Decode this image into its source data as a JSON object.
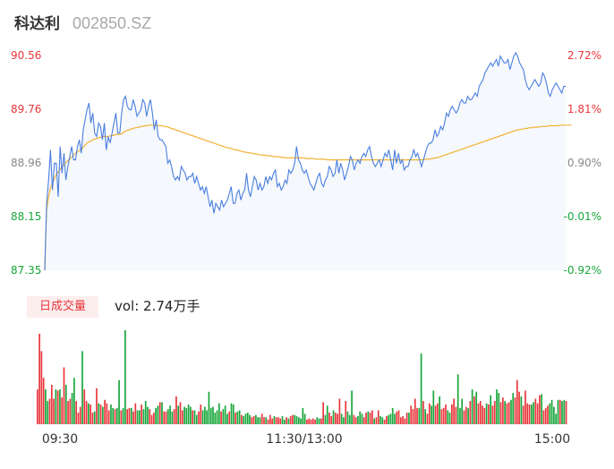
{
  "header": {
    "name": "科达利",
    "code": "002850.SZ"
  },
  "volume_section": {
    "tag": "日成交量",
    "text": "vol: 2.74万手"
  },
  "colors": {
    "up": "#e8353b",
    "down": "#17a63a",
    "price_line": "#4a7fe0",
    "avg_line": "#f2b233",
    "area_fill": "#f5f8fc",
    "label_gray": "#888888"
  },
  "chart_data": [
    {
      "type": "line",
      "title": "",
      "y_left_ticks": [
        "90.56",
        "89.76",
        "88.96",
        "88.15",
        "87.35"
      ],
      "y_right_ticks": [
        "2.72%",
        "1.81%",
        "0.90%",
        "-0.01%",
        "-0.92%"
      ],
      "x_ticks": [
        "09:30",
        "11:30/13:00",
        "15:00"
      ],
      "ylim": [
        87.35,
        90.56
      ],
      "series": [
        {
          "values": [
            87.35,
            88.35,
            88.7,
            89.15,
            88.55,
            88.95,
            88.95,
            88.45,
            89.2,
            88.8,
            89.1,
            88.7,
            88.9,
            89.05,
            89.2,
            89.0,
            89.0,
            89.2,
            89.3,
            89.1,
            89.45,
            89.6,
            89.75,
            89.85,
            89.55,
            89.7,
            89.4,
            89.35,
            89.55,
            89.5,
            89.3,
            89.55,
            89.15,
            89.35,
            89.25,
            89.4,
            89.55,
            89.7,
            89.4,
            89.4,
            89.7,
            89.9,
            89.95,
            89.8,
            89.75,
            89.75,
            89.9,
            89.8,
            89.65,
            89.7,
            89.75,
            89.9,
            89.85,
            89.65,
            89.8,
            89.9,
            89.7,
            89.45,
            89.6,
            89.35,
            89.3,
            89.3,
            89.25,
            89.2,
            88.95,
            89.0,
            88.9,
            88.75,
            88.7,
            88.75,
            88.7,
            88.9,
            88.85,
            88.8,
            88.7,
            88.75,
            88.75,
            88.8,
            88.65,
            88.75,
            88.65,
            88.55,
            88.6,
            88.5,
            88.6,
            88.45,
            88.3,
            88.4,
            88.2,
            88.35,
            88.3,
            88.25,
            88.4,
            88.3,
            88.35,
            88.4,
            88.5,
            88.6,
            88.35,
            88.35,
            88.5,
            88.55,
            88.4,
            88.5,
            88.55,
            88.8,
            88.55,
            88.45,
            88.6,
            88.75,
            88.7,
            88.55,
            88.65,
            88.55,
            88.6,
            88.75,
            88.65,
            88.75,
            88.7,
            88.8,
            88.85,
            88.6,
            88.65,
            88.55,
            88.6,
            88.7,
            88.65,
            88.85,
            88.8,
            88.85,
            88.95,
            89.2,
            89.0,
            88.95,
            88.85,
            88.8,
            88.85,
            88.75,
            88.65,
            88.6,
            88.55,
            88.65,
            88.75,
            88.8,
            88.65,
            88.6,
            88.7,
            88.75,
            88.9,
            88.85,
            88.75,
            88.8,
            89.0,
            88.8,
            88.95,
            88.85,
            88.7,
            88.8,
            88.9,
            89.05,
            89.0,
            88.85,
            88.95,
            89.0,
            88.95,
            89.05,
            89.1,
            89.05,
            89.15,
            89.2,
            89.05,
            88.95,
            88.9,
            88.95,
            89.0,
            88.9,
            89.0,
            89.1,
            89.05,
            89.15,
            89.0,
            88.85,
            89.15,
            88.95,
            89.1,
            88.95,
            89.0,
            88.85,
            88.9,
            88.9,
            89.0,
            89.05,
            89.15,
            89.05,
            89.1,
            89.0,
            88.9,
            89.0,
            89.1,
            89.2,
            89.25,
            89.25,
            89.3,
            89.45,
            89.35,
            89.4,
            89.5,
            89.45,
            89.55,
            89.7,
            89.65,
            89.75,
            89.8,
            89.75,
            89.7,
            89.75,
            89.85,
            89.9,
            89.85,
            89.85,
            89.95,
            89.9,
            89.9,
            89.95,
            90.0,
            89.95,
            90.1,
            90.15,
            90.2,
            90.3,
            90.35,
            90.4,
            90.45,
            90.4,
            90.45,
            90.5,
            90.4,
            90.55,
            90.5,
            90.45,
            90.45,
            90.5,
            90.35,
            90.45,
            90.55,
            90.6,
            90.55,
            90.45,
            90.4,
            90.35,
            90.2,
            90.1,
            90.05,
            90.1,
            90.15,
            90.2,
            90.15,
            90.1,
            90.15,
            90.3,
            90.25,
            90.15,
            90.0,
            89.95,
            90.05,
            90.1,
            90.15,
            90.1,
            90.05,
            90.0,
            90.1,
            90.1
          ]
        },
        {
          "values": [
            87.35,
            88.25,
            88.45,
            88.58,
            88.65,
            88.72,
            88.78,
            88.82,
            88.86,
            88.9,
            88.93,
            88.96,
            88.99,
            89.01,
            89.04,
            89.07,
            89.1,
            89.12,
            89.14,
            89.16,
            89.19,
            89.22,
            89.25,
            89.27,
            89.28,
            89.3,
            89.31,
            89.32,
            89.33,
            89.34,
            89.34,
            89.35,
            89.35,
            89.35,
            89.36,
            89.36,
            89.37,
            89.38,
            89.38,
            89.38,
            89.39,
            89.41,
            89.43,
            89.44,
            89.45,
            89.46,
            89.47,
            89.48,
            89.48,
            89.49,
            89.5,
            89.5,
            89.51,
            89.51,
            89.52,
            89.52,
            89.52,
            89.52,
            89.52,
            89.51,
            89.51,
            89.51,
            89.5,
            89.5,
            89.49,
            89.48,
            89.47,
            89.46,
            89.45,
            89.44,
            89.43,
            89.42,
            89.41,
            89.4,
            89.39,
            89.38,
            89.37,
            89.36,
            89.35,
            89.34,
            89.33,
            89.32,
            89.31,
            89.3,
            89.29,
            89.28,
            89.27,
            89.26,
            89.25,
            89.24,
            89.23,
            89.22,
            89.21,
            89.2,
            89.19,
            89.18,
            89.18,
            89.17,
            89.16,
            89.15,
            89.15,
            89.14,
            89.13,
            89.12,
            89.12,
            89.11,
            89.11,
            89.1,
            89.1,
            89.09,
            89.09,
            89.08,
            89.08,
            89.07,
            89.07,
            89.07,
            89.06,
            89.06,
            89.06,
            89.05,
            89.05,
            89.05,
            89.04,
            89.04,
            89.04,
            89.03,
            89.03,
            89.03,
            89.03,
            89.03,
            89.03,
            89.03,
            89.03,
            89.03,
            89.03,
            89.03,
            89.02,
            89.02,
            89.02,
            89.02,
            89.02,
            89.01,
            89.01,
            89.01,
            89.01,
            89.01,
            89.01,
            89.0,
            89.0,
            89.0,
            89.0,
            89.0,
            89.0,
            89.0,
            89.0,
            89.0,
            89.0,
            89.0,
            89.0,
            89.0,
            89.0,
            89.0,
            89.0,
            89.0,
            89.0,
            89.0,
            89.0,
            89.0,
            89.0,
            89.0,
            89.0,
            89.0,
            89.0,
            89.0,
            89.0,
            89.0,
            89.0,
            89.0,
            89.0,
            89.0,
            89.0,
            89.0,
            89.0,
            89.0,
            89.0,
            89.0,
            89.0,
            89.0,
            89.0,
            89.0,
            89.0,
            89.0,
            89.0,
            89.0,
            89.0,
            89.0,
            89.0,
            89.01,
            89.01,
            89.01,
            89.01,
            89.02,
            89.02,
            89.03,
            89.03,
            89.04,
            89.05,
            89.06,
            89.07,
            89.08,
            89.09,
            89.1,
            89.11,
            89.12,
            89.13,
            89.14,
            89.15,
            89.16,
            89.17,
            89.18,
            89.19,
            89.2,
            89.21,
            89.22,
            89.23,
            89.24,
            89.25,
            89.26,
            89.27,
            89.28,
            89.29,
            89.3,
            89.31,
            89.32,
            89.33,
            89.34,
            89.35,
            89.36,
            89.37,
            89.38,
            89.39,
            89.4,
            89.41,
            89.42,
            89.43,
            89.44,
            89.45,
            89.45,
            89.46,
            89.46,
            89.47,
            89.47,
            89.48,
            89.48,
            89.48,
            89.49,
            89.49,
            89.49,
            89.5,
            89.5,
            89.5,
            89.5,
            89.51,
            89.51,
            89.51,
            89.51,
            89.51,
            89.51,
            89.52,
            89.52,
            89.52,
            89.52,
            89.52,
            89.52,
            89.52
          ]
        }
      ]
    },
    {
      "type": "bar",
      "title": "",
      "series": [
        {
          "values": [
            0.3,
            0.78,
            0.63,
            0.4,
            0.3,
            0.2,
            0.22,
            0.34,
            0.22,
            0.3,
            0.29,
            0.3,
            0.23,
            0.49,
            0.34,
            0.2,
            0.22,
            0.27,
            0.4,
            0.2,
            0.1,
            0.15,
            0.63,
            0.3,
            0.2,
            0.18,
            0.17,
            0.1,
            0.11,
            0.31,
            0.18,
            0.17,
            0.15,
            0.21,
            0.18,
            0.12,
            0.17,
            0.14,
            0.13,
            0.14,
            0.38,
            0.12,
            0.14,
            0.81,
            0.13,
            0.14,
            0.14,
            0.11,
            0.18,
            0.12,
            0.12,
            0.17,
            0.13,
            0.2,
            0.15,
            0.13,
            0.08,
            0.1,
            0.14,
            0.16,
            0.19,
            0.19,
            0.11,
            0.11,
            0.13,
            0.16,
            0.11,
            0.13,
            0.24,
            0.16,
            0.19,
            0.12,
            0.15,
            0.14,
            0.17,
            0.15,
            0.12,
            0.12,
            0.08,
            0.11,
            0.17,
            0.12,
            0.15,
            0.12,
            0.28,
            0.14,
            0.15,
            0.1,
            0.12,
            0.18,
            0.11,
            0.13,
            0.16,
            0.09,
            0.11,
            0.18,
            0.17,
            0.1,
            0.11,
            0.12,
            0.08,
            0.07,
            0.09,
            0.1,
            0.08,
            0.06,
            0.07,
            0.08,
            0.06,
            0.06,
            0.09,
            0.06,
            0.06,
            0.04,
            0.08,
            0.05,
            0.07,
            0.06,
            0.06,
            0.05,
            0.07,
            0.04,
            0.06,
            0.05,
            0.07,
            0.08,
            0.08,
            0.07,
            0.06,
            0.05,
            0.14,
            0.09,
            0.04,
            0.05,
            0.04,
            0.05,
            0.04,
            0.06,
            0.05,
            0.05,
            0.19,
            0.08,
            0.16,
            0.1,
            0.07,
            0.12,
            0.1,
            0.09,
            0.22,
            0.09,
            0.06,
            0.2,
            0.11,
            0.08,
            0.29,
            0.08,
            0.06,
            0.07,
            0.11,
            0.09,
            0.06,
            0.1,
            0.11,
            0.1,
            0.12,
            0.05,
            0.06,
            0.12,
            0.07,
            0.06,
            0.04,
            0.07,
            0.08,
            0.09,
            0.14,
            0.09,
            0.11,
            0.12,
            0.06,
            0.07,
            0.05,
            0.1,
            0.1,
            0.16,
            0.13,
            0.22,
            0.14,
            0.14,
            0.61,
            0.2,
            0.13,
            0.09,
            0.18,
            0.16,
            0.29,
            0.16,
            0.18,
            0.24,
            0.13,
            0.14,
            0.17,
            0.12,
            0.1,
            0.17,
            0.22,
            0.15,
            0.43,
            0.14,
            0.22,
            0.12,
            0.15,
            0.14,
            0.2,
            0.3,
            0.24,
            0.28,
            0.18,
            0.2,
            0.16,
            0.14,
            0.18,
            0.17,
            0.25,
            0.16,
            0.2,
            0.3,
            0.27,
            0.19,
            0.23,
            0.2,
            0.18,
            0.19,
            0.21,
            0.27,
            0.23,
            0.38,
            0.28,
            0.24,
            0.16,
            0.29,
            0.18,
            0.17,
            0.17,
            0.19,
            0.22,
            0.18,
            0.25,
            0.26,
            0.12,
            0.14,
            0.16,
            0.18,
            0.21,
            0.15,
            0.09,
            0.21,
            0.21,
            0.2,
            0.21,
            0.2
          ],
          "direction": "uuuudduuududuuduudduuuduuduudududuuudduddudduuduudduddduuudduduuddduuduuddddudduudddddddddudddudduddudddduuddduuduuuduuudduduudddddduuuuudduudduuduuudduddduuddduuduuduudduudddduuuuuuduuuudduduudduuduuudduuuddduudududuuuududuudduuduudduuuduuuudduuuduuudddddudduduuudu"
        }
      ]
    }
  ]
}
